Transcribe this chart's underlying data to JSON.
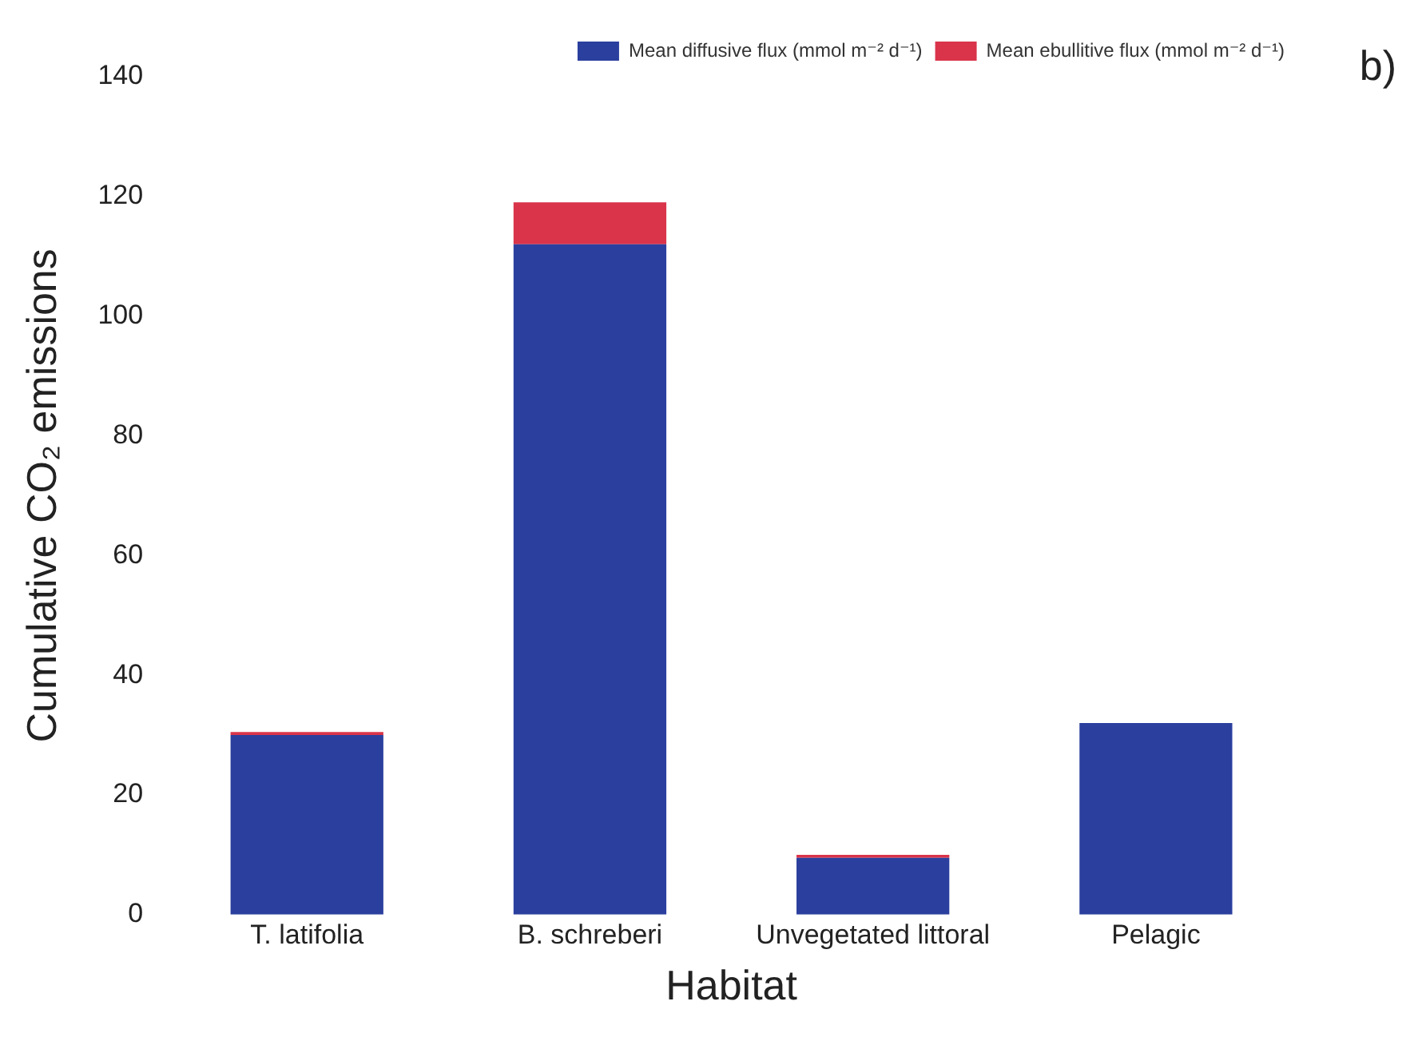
{
  "chart_data": {
    "type": "bar",
    "xlabel": "Habitat",
    "ylabel": "Cumulative CO₂ emissions",
    "categories": [
      "T. latifolia",
      "B. schreberi",
      "Unvegetated littoral",
      "Pelagic"
    ],
    "series": [
      {
        "name": "Mean diffusive flux (mmol m⁻² d⁻¹)",
        "color": "#2b3f9e",
        "values": [
          30,
          112,
          9.5,
          32
        ]
      },
      {
        "name": "Mean ebullitive flux (mmol m⁻² d⁻¹)",
        "color": "#d9344a",
        "values": [
          0.5,
          7,
          0.5,
          0
        ]
      }
    ],
    "stacked": true,
    "ylim": [
      0,
      140
    ],
    "yticks": [
      0,
      20,
      40,
      60,
      80,
      100,
      120,
      140
    ],
    "grid": false,
    "legend": "top right",
    "annotations": [
      "b)"
    ]
  }
}
